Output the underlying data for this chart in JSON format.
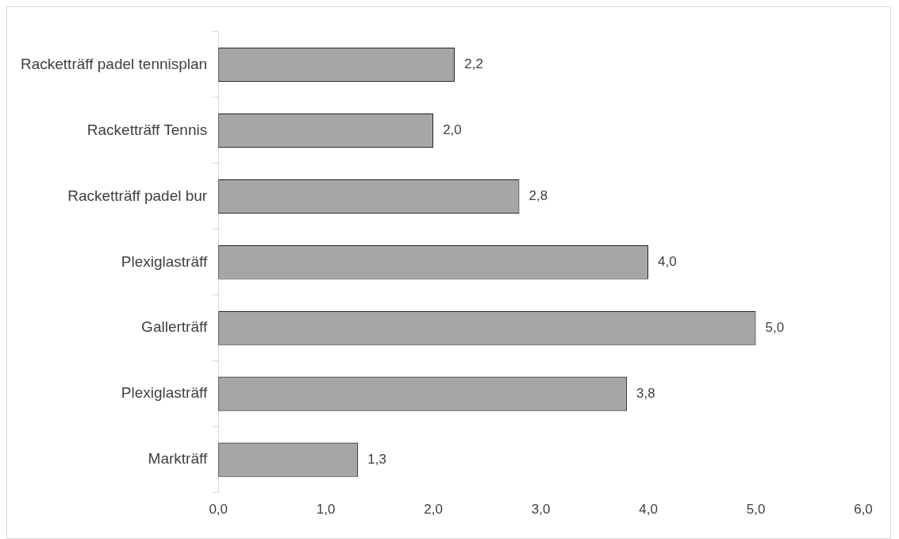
{
  "chart_data": {
    "type": "bar",
    "orientation": "horizontal",
    "categories": [
      "Racketträff padel tennisplan",
      "Racketträff Tennis",
      "Racketträff padel bur",
      "Plexiglasträff",
      "Gallerträff",
      "Plexiglasträff",
      "Markträff"
    ],
    "values": [
      2.2,
      2.0,
      2.8,
      4.0,
      5.0,
      3.8,
      1.3
    ],
    "value_labels": [
      "2,2",
      "2,0",
      "2,8",
      "4,0",
      "5,0",
      "3,8",
      "1,3"
    ],
    "color": "#a6a6a6",
    "xlim": [
      0,
      6
    ],
    "xticks": [
      {
        "value": 0,
        "label": "0,0"
      },
      {
        "value": 1,
        "label": "1,0"
      },
      {
        "value": 2,
        "label": "2,0"
      },
      {
        "value": 3,
        "label": "3,0"
      },
      {
        "value": 4,
        "label": "4,0"
      },
      {
        "value": 5,
        "label": "5,0"
      },
      {
        "value": 6,
        "label": "6,0"
      }
    ],
    "grid": false,
    "legend": false
  }
}
